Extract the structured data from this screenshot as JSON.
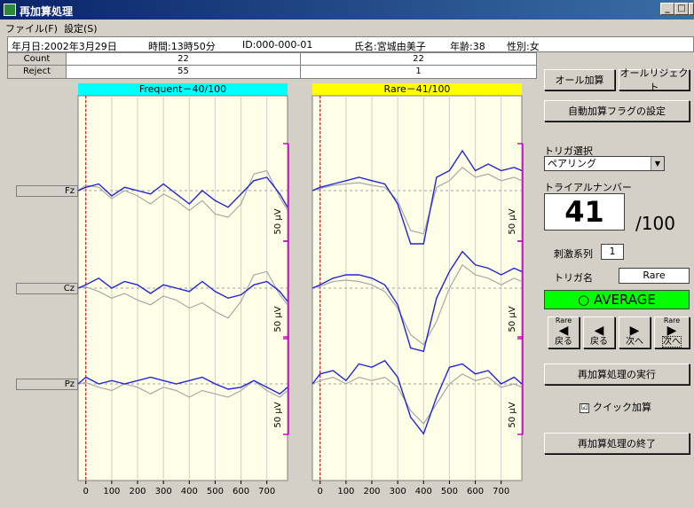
{
  "window": {
    "title": "再加算処理",
    "min": "_",
    "max": "□",
    "close": "x"
  },
  "menu": [
    "ファイル(F)",
    "設定(S)"
  ],
  "info": {
    "date": "年月日:2002年3月29日",
    "time": "時間:13時50分",
    "id": "ID:000-000-01",
    "name": "氏名:宮城由美子",
    "age": "年齢:38",
    "sex": "性別:女"
  },
  "counts": {
    "count_label": "Count",
    "reject_label": "Reject",
    "frequent_count": "22",
    "frequent_reject": "55",
    "rare_count": "22",
    "rare_reject": "1"
  },
  "buttons": {
    "all_add": "オール加算",
    "all_reject": "オールリジェクト",
    "auto_flag": "自動加算フラグの設定",
    "execute": "再加算処理の実行",
    "finish": "再加算処理の終了"
  },
  "panel": {
    "trigger_select_label": "トリガ選択",
    "trigger_select_value": "ペアリング",
    "trial_label": "トライアルナンバー",
    "trial_number": "41",
    "trial_total": "/100",
    "stim_label": "刺激系列",
    "stim_value": "1",
    "trigger_name_label": "トリガ名",
    "trigger_name_value": "Rare",
    "average": "○ AVERAGE",
    "quick_add_label": "クイック加算",
    "quick_add_checked": "☑"
  },
  "nav": [
    {
      "icon": "◀",
      "top": "Rare",
      "label": "戻る"
    },
    {
      "icon": "◀",
      "top": "",
      "label": "戻る"
    },
    {
      "icon": "▶",
      "top": "",
      "label": "次へ"
    },
    {
      "icon": "▶",
      "top": "Rare",
      "label": "次へ"
    }
  ],
  "plots": {
    "frequent_header": "Frequent－40/100",
    "rare_header": "Rare－41/100",
    "channels": [
      "Fz",
      "Cz",
      "Pz"
    ],
    "scale_label": "50 µV",
    "x_ticks": [
      "0",
      "100",
      "200",
      "300",
      "400",
      "500",
      "600",
      "700"
    ],
    "x_values": [
      0,
      100,
      200,
      300,
      400,
      500,
      600,
      700
    ],
    "xlim": [
      -30,
      780
    ]
  },
  "chart_data": [
    {
      "type": "line",
      "title": "Frequent－40/100",
      "xlabel": "",
      "ylabel": "50 µV",
      "x": [
        -30,
        0,
        50,
        100,
        150,
        200,
        250,
        300,
        350,
        400,
        450,
        500,
        550,
        600,
        650,
        700,
        750,
        780
      ],
      "xlim": [
        -30,
        780
      ],
      "channels": [
        {
          "name": "Fz",
          "series": [
            {
              "name": "",
              "values": [
                0,
                5,
                10,
                -8,
                5,
                0,
                -5,
                10,
                -5,
                -20,
                0,
                -15,
                -25,
                -5,
                15,
                20,
                -5,
                -25
              ]
            },
            {
              "name": "",
              "values": [
                0,
                8,
                5,
                -12,
                0,
                -8,
                -20,
                -5,
                -15,
                -30,
                -15,
                -35,
                -40,
                -20,
                25,
                30,
                -10,
                -30
              ]
            }
          ]
        },
        {
          "name": "Cz",
          "series": [
            {
              "name": "",
              "values": [
                0,
                5,
                15,
                0,
                10,
                5,
                -8,
                5,
                0,
                -5,
                10,
                -5,
                -15,
                -10,
                5,
                10,
                -5,
                -20
              ]
            },
            {
              "name": "",
              "values": [
                0,
                2,
                -5,
                -15,
                -8,
                -18,
                -25,
                -12,
                -18,
                -30,
                -22,
                -35,
                -45,
                -20,
                20,
                25,
                -10,
                -25
              ]
            }
          ]
        },
        {
          "name": "Pz",
          "series": [
            {
              "name": "",
              "values": [
                0,
                10,
                0,
                5,
                0,
                5,
                10,
                5,
                0,
                5,
                10,
                0,
                -8,
                -5,
                5,
                -5,
                -15,
                -5
              ]
            },
            {
              "name": "",
              "values": [
                0,
                2,
                -5,
                -10,
                0,
                -5,
                -15,
                -5,
                -10,
                -20,
                -10,
                -15,
                -20,
                -10,
                5,
                -10,
                -20,
                -10
              ]
            }
          ]
        }
      ]
    },
    {
      "type": "line",
      "title": "Rare－41/100",
      "xlabel": "",
      "ylabel": "50 µV",
      "x": [
        -30,
        0,
        50,
        100,
        150,
        200,
        250,
        300,
        350,
        400,
        450,
        500,
        550,
        600,
        650,
        700,
        750,
        780
      ],
      "xlim": [
        -30,
        780
      ],
      "channels": [
        {
          "name": "Fz",
          "series": [
            {
              "name": "",
              "values": [
                0,
                5,
                10,
                15,
                20,
                15,
                10,
                -20,
                -80,
                -80,
                20,
                30,
                60,
                30,
                40,
                30,
                35,
                30
              ]
            },
            {
              "name": "",
              "values": [
                0,
                3,
                8,
                10,
                12,
                8,
                5,
                -15,
                -60,
                -65,
                5,
                15,
                35,
                20,
                25,
                15,
                20,
                15
              ]
            }
          ]
        },
        {
          "name": "Cz",
          "series": [
            {
              "name": "",
              "values": [
                0,
                5,
                15,
                20,
                20,
                15,
                5,
                -25,
                -90,
                -95,
                -15,
                25,
                55,
                35,
                30,
                20,
                30,
                25
              ]
            },
            {
              "name": "",
              "values": [
                0,
                3,
                10,
                12,
                10,
                5,
                -5,
                -30,
                -70,
                -85,
                -50,
                0,
                35,
                20,
                15,
                5,
                15,
                10
              ]
            }
          ]
        },
        {
          "name": "Pz",
          "series": [
            {
              "name": "",
              "values": [
                0,
                15,
                20,
                5,
                30,
                25,
                35,
                10,
                -50,
                -75,
                -20,
                25,
                30,
                15,
                20,
                0,
                10,
                0
              ]
            },
            {
              "name": "",
              "values": [
                0,
                5,
                10,
                0,
                10,
                5,
                10,
                -5,
                -40,
                -60,
                -30,
                0,
                15,
                5,
                10,
                -5,
                0,
                -5
              ]
            }
          ]
        }
      ]
    }
  ],
  "colors": {
    "title_bg": "#0a246a",
    "frequent_header": "#00ffff",
    "rare_header": "#ffff00",
    "plot_bg": "#ffffe8",
    "avg_line": "#2424d8",
    "trial_line": "#a8a8a8",
    "stim_marker": "#b00000",
    "scale_bar": "#d000d0",
    "average_bg": "#00ff00"
  }
}
